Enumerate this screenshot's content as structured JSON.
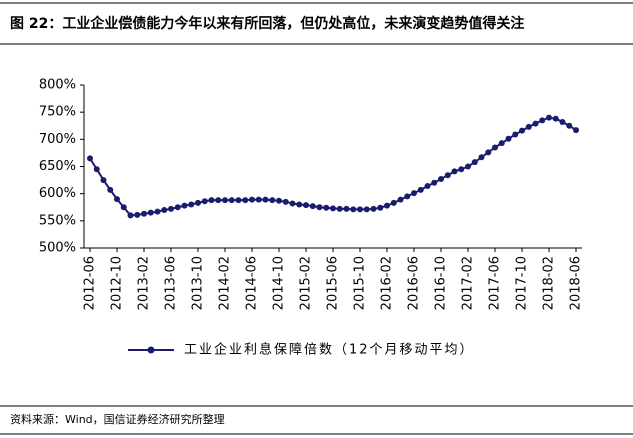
{
  "chart_data": {
    "type": "line",
    "title": "图 22：工业企业偿债能力今年以来有所回落，但仍处高位，未来演变趋势值得关注",
    "source": "资料来源：Wind，国信证券经济研究所整理",
    "categories": [
      "2012-06",
      null,
      null,
      null,
      "2012-10",
      null,
      null,
      null,
      "2013-02",
      null,
      null,
      null,
      "2013-06",
      null,
      null,
      null,
      "2013-10",
      null,
      null,
      null,
      "2014-02",
      null,
      null,
      null,
      "2014-06",
      null,
      null,
      null,
      "2014-10",
      null,
      null,
      null,
      "2015-02",
      null,
      null,
      null,
      "2015-06",
      null,
      null,
      null,
      "2015-10",
      null,
      null,
      null,
      "2016-02",
      null,
      null,
      null,
      "2016-06",
      null,
      null,
      null,
      "2016-10",
      null,
      null,
      null,
      "2017-02",
      null,
      null,
      null,
      "2017-06",
      null,
      null,
      null,
      "2017-10",
      null,
      null,
      null,
      "2018-02",
      null,
      null,
      null,
      "2018-06"
    ],
    "series": [
      {
        "name": "工业企业利息保障倍数（12个月移动平均）",
        "color": "#1c1c6e",
        "values": [
          665,
          645,
          625,
          607,
          590,
          575,
          560,
          561,
          563,
          565,
          567,
          570,
          572,
          575,
          578,
          580,
          583,
          586,
          588,
          588,
          588,
          588,
          588,
          588,
          589,
          589,
          589,
          588,
          587,
          585,
          582,
          580,
          579,
          577,
          575,
          574,
          573,
          572,
          572,
          571,
          571,
          571,
          572,
          574,
          578,
          583,
          589,
          595,
          601,
          607,
          614,
          620,
          627,
          634,
          641,
          645,
          650,
          658,
          667,
          676,
          685,
          693,
          701,
          709,
          716,
          723,
          729,
          735,
          740,
          738,
          732,
          725,
          717
        ]
      }
    ],
    "ylim": [
      500,
      800
    ],
    "yticks": [
      {
        "value": 500,
        "label": "500%"
      },
      {
        "value": 550,
        "label": "550%"
      },
      {
        "value": 600,
        "label": "600%"
      },
      {
        "value": 650,
        "label": "650%"
      },
      {
        "value": 700,
        "label": "700%"
      },
      {
        "value": 750,
        "label": "750%"
      },
      {
        "value": 800,
        "label": "800%"
      }
    ],
    "grid": false,
    "legend": "bottom"
  }
}
